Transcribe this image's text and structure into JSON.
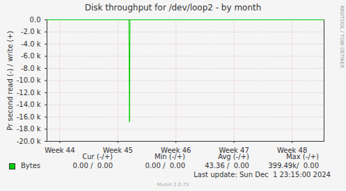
{
  "chart_data": {
    "type": "line",
    "title": "Disk throughput for /dev/loop2 - by month",
    "y_label": "Pr second read (-) / write (+)",
    "x": [
      43.78,
      45.19,
      45.2,
      45.21,
      48.55
    ],
    "series": [
      {
        "name": "Bytes",
        "color": "#00cc00",
        "values": [
          0,
          0,
          -16800,
          0,
          0
        ],
        "stats": [
          "0.00 /  0.00",
          "0.00 /  0.00",
          "43.36 /  0.00",
          "399.49k/  0.00"
        ]
      }
    ],
    "stats_headers": [
      "Cur (-/+)",
      "Min (-/+)",
      "Avg (-/+)",
      "Max (-/+)"
    ],
    "xlim": [
      43.78,
      48.55
    ],
    "xticks": [
      {
        "value": 44,
        "label": "Week 44"
      },
      {
        "value": 45,
        "label": "Week 45"
      },
      {
        "value": 46,
        "label": "Week 46"
      },
      {
        "value": 47,
        "label": "Week 47"
      },
      {
        "value": 48,
        "label": "Week 48"
      }
    ],
    "ylim": [
      -20000,
      0
    ],
    "yticks": [
      {
        "value": 0,
        "label": "0.0"
      },
      {
        "value": -2000,
        "label": "-2.0 k"
      },
      {
        "value": -4000,
        "label": "-4.0 k"
      },
      {
        "value": -6000,
        "label": "-6.0 k"
      },
      {
        "value": -8000,
        "label": "-8.0 k"
      },
      {
        "value": -10000,
        "label": "-10.0 k"
      },
      {
        "value": -12000,
        "label": "-12.0 k"
      },
      {
        "value": -14000,
        "label": "-14.0 k"
      },
      {
        "value": -16000,
        "label": "-16.0 k"
      },
      {
        "value": -18000,
        "label": "-18.0 k"
      },
      {
        "value": -20000,
        "label": "-20.0 k"
      }
    ],
    "grid": true,
    "last_update": "Last update: Sun Dec  1 23:15:00 2024",
    "footer": "Munin 2.0.75",
    "watermark": "RRDTOOL / TOBI OETIKER"
  }
}
